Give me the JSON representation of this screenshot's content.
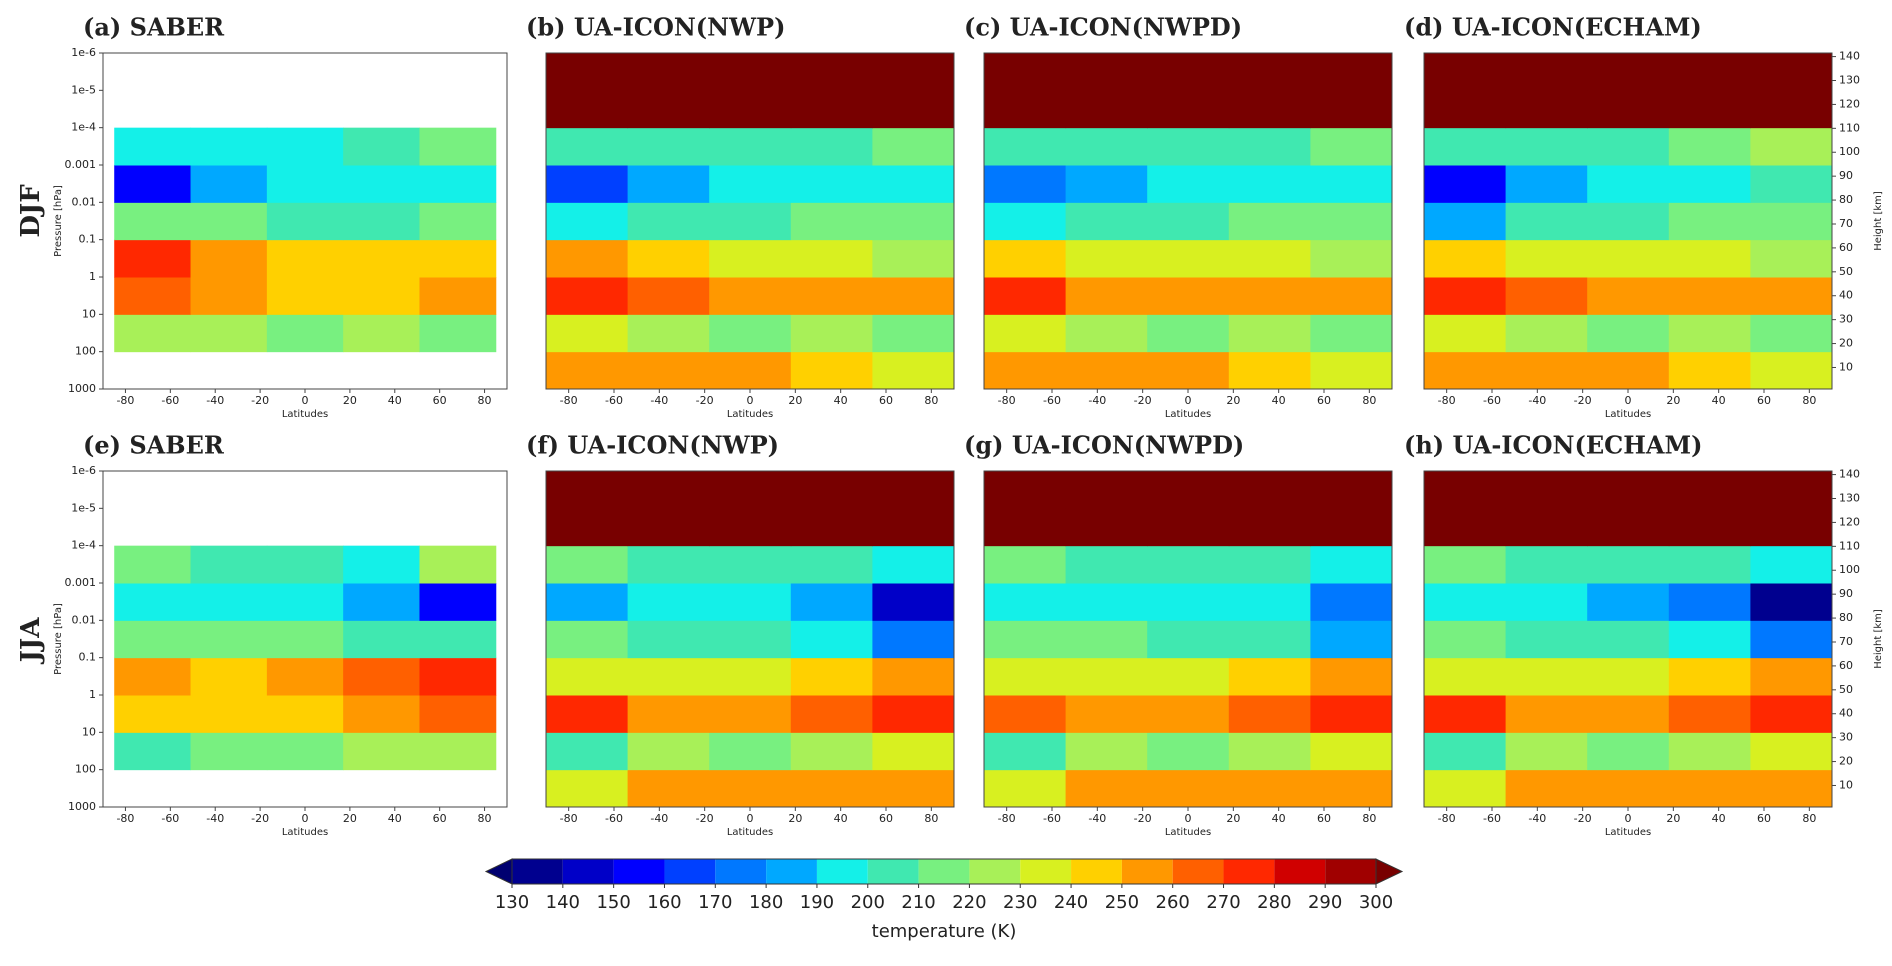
{
  "row_labels": [
    "DJF",
    "JJA"
  ],
  "chart_data": [
    {
      "type": "contour",
      "title": "(a) SABER",
      "xlabel": "Latitudes",
      "ylabel": "Pressure [hPa]",
      "ylog": true,
      "xlim": [
        -90,
        90
      ],
      "xticks": [
        -80,
        -60,
        -40,
        -20,
        0,
        20,
        40,
        60,
        80
      ],
      "ylim": [
        1000,
        1e-06
      ],
      "yticks": [
        1000,
        100,
        10,
        1,
        0.1,
        0.01,
        0.001,
        {
          "value": 0.0001,
          "label": "1e-4"
        },
        {
          "value": 1e-05,
          "label": "1e-5"
        },
        {
          "value": 1e-06,
          "label": "1e-6"
        }
      ],
      "x_edges": [
        -85,
        -51,
        -17,
        17,
        51,
        85
      ],
      "y_edges": [
        100,
        10,
        1,
        0.1,
        0.01,
        0.001,
        0.0001
      ],
      "z": [
        [
          225,
          220,
          210,
          220,
          215
        ],
        [
          265,
          255,
          245,
          240,
          250
        ],
        [
          270,
          255,
          245,
          240,
          240
        ],
        [
          215,
          215,
          205,
          205,
          210
        ],
        [
          155,
          185,
          190,
          195,
          195
        ],
        [
          190,
          190,
          190,
          200,
          210
        ]
      ]
    },
    {
      "type": "contour",
      "title": "(b) UA-ICON(NWP)",
      "xlabel": "Latitudes",
      "ylog": true,
      "xlim": [
        -90,
        90
      ],
      "xticks": [
        -80,
        -60,
        -40,
        -20,
        0,
        20,
        40,
        60,
        80
      ],
      "ylim": [
        1000,
        1e-06
      ],
      "x_edges": [
        -90,
        -54,
        -18,
        18,
        54,
        90
      ],
      "y_edges": [
        1000,
        100,
        10,
        1,
        0.1,
        0.01,
        0.001,
        0.0001,
        1e-05,
        1e-06
      ],
      "z": [
        [
          255,
          250,
          255,
          245,
          230
        ],
        [
          230,
          225,
          210,
          220,
          215
        ],
        [
          272,
          260,
          252,
          250,
          255
        ],
        [
          250,
          240,
          235,
          235,
          225
        ],
        [
          190,
          205,
          205,
          212,
          215
        ],
        [
          160,
          185,
          195,
          195,
          198
        ],
        [
          205,
          200,
          200,
          205,
          215
        ],
        [
          420,
          400,
          390,
          375,
          360
        ],
        [
          680,
          650,
          620,
          600,
          580
        ]
      ]
    },
    {
      "type": "contour",
      "title": "(c) UA-ICON(NWPD)",
      "xlabel": "Latitudes",
      "ylog": true,
      "xlim": [
        -90,
        90
      ],
      "xticks": [
        -80,
        -60,
        -40,
        -20,
        0,
        20,
        40,
        60,
        80
      ],
      "ylim": [
        1000,
        1e-06
      ],
      "x_edges": [
        -90,
        -54,
        -18,
        18,
        54,
        90
      ],
      "y_edges": [
        1000,
        100,
        10,
        1,
        0.1,
        0.01,
        0.001,
        0.0001,
        1e-05,
        1e-06
      ],
      "z": [
        [
          255,
          250,
          255,
          245,
          230
        ],
        [
          230,
          225,
          212,
          222,
          215
        ],
        [
          272,
          258,
          250,
          250,
          255
        ],
        [
          248,
          238,
          235,
          235,
          225
        ],
        [
          192,
          205,
          205,
          210,
          215
        ],
        [
          178,
          188,
          195,
          195,
          198
        ],
        [
          205,
          200,
          200,
          205,
          215
        ],
        [
          420,
          400,
          390,
          375,
          360
        ],
        [
          680,
          650,
          620,
          600,
          580
        ]
      ]
    },
    {
      "type": "contour",
      "title": "(d) UA-ICON(ECHAM)",
      "xlabel": "Latitudes",
      "ylog": true,
      "y2label": "Height [km]",
      "xlim": [
        -90,
        90
      ],
      "xticks": [
        -80,
        -60,
        -40,
        -20,
        0,
        20,
        40,
        60,
        80
      ],
      "ylim": [
        1000,
        1e-06
      ],
      "y2lim": [
        1,
        141.5
      ],
      "y2ticks": [
        10,
        20,
        30,
        40,
        50,
        60,
        70,
        80,
        90,
        100,
        110,
        120,
        130,
        140
      ],
      "x_edges": [
        -90,
        -54,
        -18,
        18,
        54,
        90
      ],
      "y_edges": [
        1000,
        100,
        10,
        1,
        0.1,
        0.01,
        0.001,
        0.0001,
        1e-05,
        1e-06
      ],
      "z": [
        [
          255,
          250,
          255,
          245,
          230
        ],
        [
          230,
          225,
          210,
          222,
          215
        ],
        [
          275,
          260,
          252,
          252,
          255
        ],
        [
          245,
          235,
          230,
          230,
          225
        ],
        [
          185,
          200,
          205,
          210,
          215
        ],
        [
          150,
          180,
          190,
          195,
          200
        ],
        [
          200,
          200,
          205,
          210,
          220
        ],
        [
          400,
          380,
          370,
          360,
          350
        ],
        [
          620,
          600,
          580,
          560,
          550
        ]
      ]
    },
    {
      "type": "contour",
      "title": "(e) SABER",
      "xlabel": "Latitudes",
      "ylabel": "Pressure [hPa]",
      "ylog": true,
      "xlim": [
        -90,
        90
      ],
      "xticks": [
        -80,
        -60,
        -40,
        -20,
        0,
        20,
        40,
        60,
        80
      ],
      "ylim": [
        1000,
        1e-06
      ],
      "yticks": [
        1000,
        100,
        10,
        1,
        0.1,
        0.01,
        0.001,
        {
          "value": 0.0001,
          "label": "1e-4"
        },
        {
          "value": 1e-05,
          "label": "1e-5"
        },
        {
          "value": 1e-06,
          "label": "1e-6"
        }
      ],
      "x_edges": [
        -85,
        -51,
        -17,
        17,
        51,
        85
      ],
      "y_edges": [
        100,
        10,
        1,
        0.1,
        0.01,
        0.001,
        0.0001
      ],
      "z": [
        [
          200,
          215,
          210,
          220,
          220
        ],
        [
          240,
          245,
          245,
          255,
          265
        ],
        [
          255,
          245,
          250,
          260,
          275
        ],
        [
          210,
          210,
          210,
          205,
          200
        ],
        [
          195,
          190,
          190,
          180,
          150
        ],
        [
          210,
          200,
          200,
          195,
          220
        ]
      ]
    },
    {
      "type": "contour",
      "title": "(f) UA-ICON(NWP)",
      "xlabel": "Latitudes",
      "ylog": true,
      "xlim": [
        -90,
        90
      ],
      "xticks": [
        -80,
        -60,
        -40,
        -20,
        0,
        20,
        40,
        60,
        80
      ],
      "ylim": [
        1000,
        1e-06
      ],
      "x_edges": [
        -90,
        -54,
        -18,
        18,
        54,
        90
      ],
      "y_edges": [
        1000,
        100,
        10,
        1,
        0.1,
        0.01,
        0.001,
        0.0001,
        1e-05,
        1e-06
      ],
      "z": [
        [
          235,
          250,
          255,
          250,
          255
        ],
        [
          200,
          220,
          210,
          225,
          230
        ],
        [
          270,
          255,
          250,
          262,
          275
        ],
        [
          235,
          235,
          235,
          240,
          250
        ],
        [
          210,
          205,
          205,
          195,
          175
        ],
        [
          185,
          190,
          190,
          185,
          145
        ],
        [
          210,
          200,
          200,
          200,
          195
        ],
        [
          360,
          380,
          390,
          410,
          430
        ],
        [
          580,
          610,
          630,
          660,
          700
        ]
      ]
    },
    {
      "type": "contour",
      "title": "(g) UA-ICON(NWPD)",
      "xlabel": "Latitudes",
      "ylog": true,
      "xlim": [
        -90,
        90
      ],
      "xticks": [
        -80,
        -60,
        -40,
        -20,
        0,
        20,
        40,
        60,
        80
      ],
      "ylim": [
        1000,
        1e-06
      ],
      "x_edges": [
        -90,
        -54,
        -18,
        18,
        54,
        90
      ],
      "y_edges": [
        1000,
        100,
        10,
        1,
        0.1,
        0.01,
        0.001,
        0.0001,
        1e-05,
        1e-06
      ],
      "z": [
        [
          235,
          250,
          255,
          250,
          255
        ],
        [
          200,
          220,
          212,
          225,
          230
        ],
        [
          268,
          255,
          250,
          260,
          272
        ],
        [
          235,
          235,
          235,
          240,
          250
        ],
        [
          212,
          210,
          205,
          200,
          185
        ],
        [
          190,
          192,
          192,
          190,
          175
        ],
        [
          210,
          200,
          200,
          200,
          195
        ],
        [
          360,
          380,
          390,
          410,
          430
        ],
        [
          580,
          610,
          630,
          650,
          690
        ]
      ]
    },
    {
      "type": "contour",
      "title": "(h) UA-ICON(ECHAM)",
      "xlabel": "Latitudes",
      "ylog": true,
      "y2label": "Height [km]",
      "xlim": [
        -90,
        90
      ],
      "xticks": [
        -80,
        -60,
        -40,
        -20,
        0,
        20,
        40,
        60,
        80
      ],
      "ylim": [
        1000,
        1e-06
      ],
      "y2lim": [
        1,
        141.5
      ],
      "y2ticks": [
        10,
        20,
        30,
        40,
        50,
        60,
        70,
        80,
        90,
        100,
        110,
        120,
        130,
        140
      ],
      "x_edges": [
        -90,
        -54,
        -18,
        18,
        54,
        90
      ],
      "y_edges": [
        1000,
        100,
        10,
        1,
        0.1,
        0.01,
        0.001,
        0.0001,
        1e-05,
        1e-06
      ],
      "z": [
        [
          235,
          250,
          255,
          250,
          255
        ],
        [
          200,
          220,
          210,
          225,
          230
        ],
        [
          272,
          258,
          252,
          262,
          275
        ],
        [
          235,
          235,
          235,
          240,
          250
        ],
        [
          210,
          205,
          205,
          190,
          170
        ],
        [
          190,
          190,
          185,
          170,
          135
        ],
        [
          210,
          205,
          200,
          200,
          195
        ],
        [
          350,
          370,
          380,
          390,
          400
        ],
        [
          550,
          560,
          580,
          590,
          600
        ]
      ]
    },
    {
      "type": "colorbar",
      "label": "temperature (K)",
      "ticks": [
        130,
        140,
        150,
        160,
        170,
        180,
        190,
        200,
        210,
        220,
        230,
        240,
        250,
        260,
        270,
        280,
        290,
        300
      ],
      "colors": [
        "#00008f",
        "#0000c8",
        "#0000ff",
        "#0040ff",
        "#0078ff",
        "#00a8ff",
        "#14f0e8",
        "#40e8b0",
        "#78f080",
        "#a8f058",
        "#d8f020",
        "#ffd000",
        "#ff9800",
        "#ff6000",
        "#ff2800",
        "#d00000",
        "#a00000"
      ],
      "under_color": "#000070",
      "over_color": "#780000"
    }
  ]
}
